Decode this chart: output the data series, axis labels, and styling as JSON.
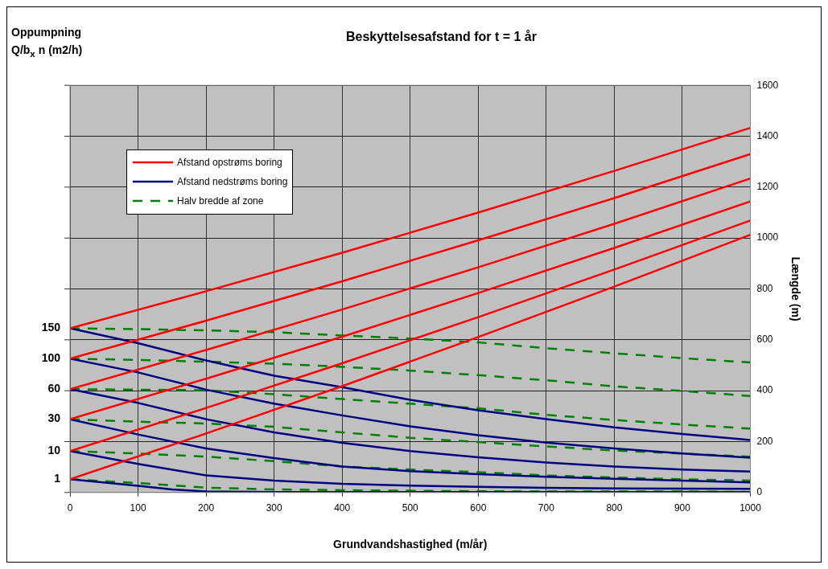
{
  "chart_data": {
    "type": "line",
    "title": "Beskyttelsesafstand for t = 1 år",
    "xlabel": "Grundvandshastighed (m/år)",
    "ylabel": "Længde (m)",
    "annotations": [
      "Oppumpning\nQ/b$_{x}$ n (m2/h)",
      "1",
      "10",
      "30",
      "60",
      "100",
      "150"
    ],
    "xlim": [
      0,
      1000
    ],
    "xticks": [
      0,
      100,
      200,
      300,
      400,
      500,
      600,
      700,
      800,
      900,
      1000
    ],
    "ylim": [
      0,
      1600
    ],
    "yticks": [
      0,
      200,
      400,
      600,
      800,
      1000,
      1200,
      1400,
      1600
    ],
    "grid": true,
    "legend": "top left",
    "marker": "none",
    "series": [
      {
        "name": "Afstand opstrøms boring",
        "color": "#ff0000",
        "line_style": "solid",
        "x": [
          0,
          200,
          400,
          600,
          800,
          1000
        ],
        "values": [
          52,
          232,
          418,
          611,
          809,
          1013
        ]
      },
      {
        "color": "#ff0000",
        "line_style": "solid",
        "x": [
          0,
          200,
          400,
          600,
          800,
          1000
        ],
        "values": [
          163,
          332,
          508,
          689,
          876,
          1069
        ]
      },
      {
        "color": "#ff0000",
        "line_style": "solid",
        "x": [
          0,
          200,
          400,
          600,
          800,
          1000
        ],
        "values": [
          288,
          447,
          612,
          784,
          961,
          1144
        ]
      },
      {
        "color": "#ff0000",
        "line_style": "solid",
        "x": [
          0,
          200,
          400,
          600,
          800,
          1000
        ],
        "values": [
          406,
          560,
          719,
          885,
          1056,
          1234
        ]
      },
      {
        "color": "#ff0000",
        "line_style": "solid",
        "x": [
          0,
          200,
          400,
          600,
          800,
          1000
        ],
        "values": [
          526,
          675,
          830,
          991,
          1157,
          1330
        ]
      },
      {
        "color": "#ff0000",
        "line_style": "solid",
        "x": [
          0,
          200,
          400,
          600,
          800,
          1000
        ],
        "values": [
          645,
          791,
          942,
          1100,
          1264,
          1433
        ]
      },
      {
        "name": "Afstand nedstrøms boring",
        "color": "#000080",
        "line_style": "solid",
        "x": [
          0,
          100,
          150,
          200,
          300,
          400,
          500,
          600,
          700,
          800,
          900,
          1000
        ],
        "values": [
          52,
          26,
          12,
          4,
          2,
          2,
          2,
          2,
          2,
          2,
          2,
          2
        ]
      },
      {
        "color": "#000080",
        "line_style": "solid",
        "x": [
          0,
          100,
          200,
          300,
          400,
          500,
          600,
          700,
          800,
          900,
          1000
        ],
        "values": [
          163,
          112,
          67,
          47,
          34,
          27,
          22,
          18,
          16,
          15,
          14
        ]
      },
      {
        "color": "#000080",
        "line_style": "solid",
        "x": [
          0,
          100,
          200,
          300,
          400,
          500,
          600,
          700,
          800,
          900,
          1000
        ],
        "values": [
          288,
          228,
          173,
          135,
          102,
          84,
          72,
          62,
          54,
          47,
          40
        ]
      },
      {
        "color": "#000080",
        "line_style": "solid",
        "x": [
          0,
          100,
          200,
          300,
          400,
          500,
          600,
          700,
          800,
          900,
          1000
        ],
        "values": [
          406,
          352,
          288,
          236,
          195,
          163,
          138,
          118,
          102,
          90,
          82
        ]
      },
      {
        "color": "#000080",
        "line_style": "solid",
        "x": [
          0,
          100,
          200,
          300,
          400,
          500,
          600,
          700,
          800,
          900,
          1000
        ],
        "values": [
          526,
          472,
          404,
          349,
          303,
          260,
          225,
          196,
          173,
          153,
          137
        ]
      },
      {
        "color": "#000080",
        "line_style": "solid",
        "x": [
          0,
          100,
          200,
          300,
          400,
          500,
          600,
          700,
          800,
          900,
          1000
        ],
        "values": [
          645,
          587,
          519,
          459,
          414,
          364,
          323,
          288,
          256,
          230,
          206
        ]
      },
      {
        "name": "Halv bredde af zone",
        "color": "#008000",
        "line_style": "dashed",
        "x": [
          0,
          100,
          200,
          300,
          400,
          500,
          600,
          700,
          800,
          900,
          1000
        ],
        "values": [
          52,
          37,
          19,
          12,
          9,
          7,
          5,
          4,
          4,
          4,
          2
        ]
      },
      {
        "color": "#008000",
        "line_style": "dashed",
        "x": [
          0,
          100,
          200,
          300,
          400,
          500,
          600,
          700,
          800,
          900,
          1000
        ],
        "values": [
          163,
          153,
          141,
          123,
          102,
          90,
          80,
          67,
          59,
          52,
          47
        ]
      },
      {
        "color": "#008000",
        "line_style": "dashed",
        "x": [
          0,
          100,
          200,
          300,
          400,
          500,
          600,
          700,
          800,
          900,
          1000
        ],
        "values": [
          288,
          278,
          271,
          258,
          236,
          215,
          198,
          181,
          165,
          153,
          141
        ]
      },
      {
        "color": "#008000",
        "line_style": "dashed",
        "x": [
          0,
          100,
          200,
          300,
          400,
          500,
          600,
          700,
          800,
          900,
          1000
        ],
        "values": [
          406,
          404,
          402,
          386,
          367,
          349,
          331,
          305,
          285,
          267,
          251
        ]
      },
      {
        "color": "#008000",
        "line_style": "dashed",
        "x": [
          0,
          100,
          200,
          300,
          400,
          500,
          600,
          700,
          800,
          900,
          1000
        ],
        "values": [
          526,
          521,
          514,
          506,
          494,
          479,
          461,
          441,
          417,
          399,
          379
        ]
      },
      {
        "color": "#008000",
        "line_style": "dashed",
        "x": [
          0,
          100,
          200,
          300,
          400,
          500,
          600,
          700,
          800,
          900,
          1000
        ],
        "values": [
          645,
          642,
          637,
          630,
          617,
          605,
          590,
          567,
          547,
          528,
          511
        ]
      }
    ]
  }
}
